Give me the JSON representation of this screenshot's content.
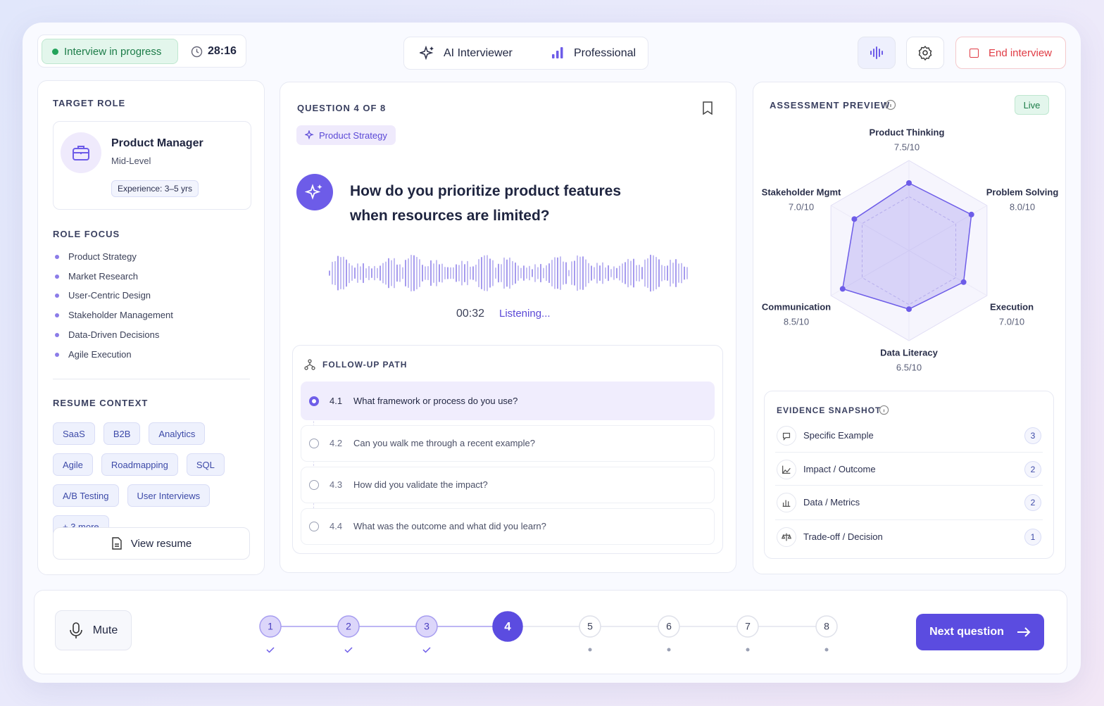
{
  "header": {
    "status": "Interview in progress",
    "timer": "28:16",
    "interviewer": "AI Interviewer",
    "level": "Professional",
    "end_button": "End interview"
  },
  "target_role": {
    "heading": "TARGET ROLE",
    "role": "Product Manager",
    "level": "Mid-Level",
    "experience": "Experience: 3–5 yrs"
  },
  "role_focus": {
    "heading": "ROLE FOCUS",
    "items": [
      "Product Strategy",
      "Market Research",
      "User-Centric Design",
      "Stakeholder Management",
      "Data-Driven Decisions",
      "Agile Execution"
    ]
  },
  "resume_context": {
    "heading": "RESUME CONTEXT",
    "tags": [
      "SaaS",
      "B2B",
      "Analytics",
      "Agile",
      "Roadmapping",
      "SQL",
      "A/B Testing",
      "User Interviews",
      "+ 3 more"
    ],
    "view_button": "View resume"
  },
  "question": {
    "counter": "QUESTION 4 OF 8",
    "topic": "Product Strategy",
    "text": "How do you prioritize product features when resources are limited?",
    "elapsed": "00:32",
    "status": "Listening..."
  },
  "follow_up": {
    "heading": "FOLLOW-UP PATH",
    "items": [
      {
        "number": "4.1",
        "text": "What framework or process do you use?",
        "state": "active"
      },
      {
        "number": "4.2",
        "text": "Can you walk me through a recent example?",
        "state": "pending"
      },
      {
        "number": "4.3",
        "text": "How did you validate the impact?",
        "state": "pending"
      },
      {
        "number": "4.4",
        "text": "What was the outcome and what did you learn?",
        "state": "pending"
      }
    ]
  },
  "assessment": {
    "title": "ASSESSMENT PREVIEW",
    "badge": "Live",
    "rlim": [
      0,
      10
    ],
    "axes": [
      "Product Thinking",
      "Problem Solving",
      "Execution",
      "Data Literacy",
      "Communication",
      "Stakeholder Mgmt"
    ],
    "values": [
      7.5,
      8.0,
      7.0,
      6.5,
      8.5,
      7.0
    ],
    "value_labels": [
      "7.5/10",
      "8.0/10",
      "7.0/10",
      "6.5/10",
      "8.5/10",
      "7.0/10"
    ],
    "color": "#6d5ce8"
  },
  "evidence": {
    "heading": "EVIDENCE SNAPSHOT",
    "items": [
      {
        "label": "Specific Example",
        "count": 3
      },
      {
        "label": "Impact / Outcome",
        "count": 2
      },
      {
        "label": "Data / Metrics",
        "count": 2
      },
      {
        "label": "Trade-off / Decision",
        "count": 1
      }
    ]
  },
  "progress": {
    "mute": "Mute",
    "steps": [
      {
        "number": 1,
        "state": "done"
      },
      {
        "number": 2,
        "state": "done"
      },
      {
        "number": 3,
        "state": "done"
      },
      {
        "number": 4,
        "state": "current"
      },
      {
        "number": 5,
        "state": "todo"
      },
      {
        "number": 6,
        "state": "todo"
      },
      {
        "number": 7,
        "state": "todo"
      },
      {
        "number": 8,
        "state": "todo"
      }
    ],
    "next_button": "Next question"
  }
}
